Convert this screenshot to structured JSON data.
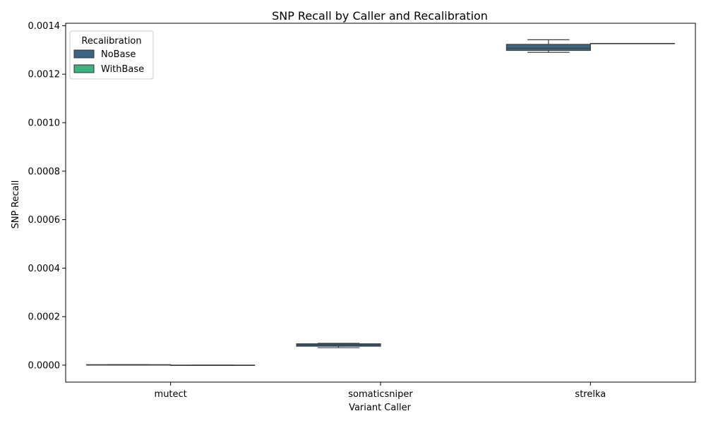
{
  "chart_data": {
    "type": "box",
    "title": "SNP Recall by Caller and Recalibration",
    "xlabel": "Variant Caller",
    "ylabel": "SNP Recall",
    "categories": [
      "mutect",
      "somaticsniper",
      "strelka"
    ],
    "ylim": [
      -7e-05,
      0.00141
    ],
    "yticks": [
      0.0,
      0.0002,
      0.0004,
      0.0006,
      0.0008,
      0.001,
      0.0012,
      0.0014
    ],
    "ytick_labels": [
      "0.0000",
      "0.0002",
      "0.0004",
      "0.0006",
      "0.0008",
      "0.0010",
      "0.0012",
      "0.0014"
    ],
    "legend": {
      "title": "Recalibration",
      "position": "top-left"
    },
    "series": [
      {
        "name": "NoBase",
        "color": "#3b6580",
        "boxes": [
          {
            "category": "mutect",
            "whislo": 0.0,
            "q1": 0.0,
            "med": 1e-06,
            "q3": 2e-06,
            "whishi": 2e-06
          },
          {
            "category": "somaticsniper",
            "whislo": 7.2e-05,
            "q1": 7.8e-05,
            "med": 8.3e-05,
            "q3": 8.8e-05,
            "whishi": 9e-05
          },
          {
            "category": "strelka",
            "whislo": 0.00129,
            "q1": 0.001298,
            "med": 0.001307,
            "q3": 0.001323,
            "whishi": 0.001342
          }
        ]
      },
      {
        "name": "WithBase",
        "color": "#3fb27f",
        "boxes": [
          {
            "category": "mutect",
            "whislo": 0.0,
            "q1": 0.0,
            "med": 0.0,
            "q3": 0.0,
            "whishi": 0.0
          },
          {
            "category": "somaticsniper",
            "whislo": null,
            "q1": null,
            "med": null,
            "q3": null,
            "whishi": null
          },
          {
            "category": "strelka",
            "whislo": 0.001327,
            "q1": 0.001327,
            "med": 0.001327,
            "q3": 0.001327,
            "whishi": 0.001327
          }
        ]
      }
    ]
  }
}
